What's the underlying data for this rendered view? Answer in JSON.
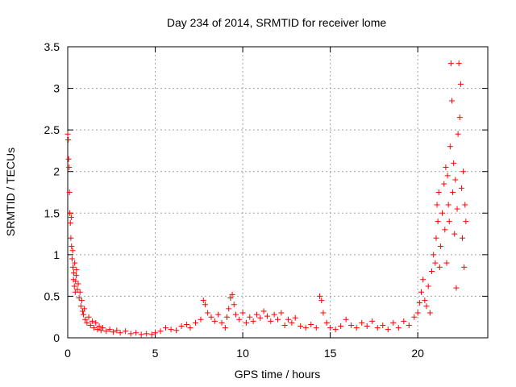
{
  "chart_data": {
    "type": "scatter",
    "title": "Day 234 of 2014, SRMTID for receiver lome",
    "xlabel": "GPS time / hours",
    "ylabel": "SRMTID / TECUs",
    "xlim": [
      0,
      24
    ],
    "ylim": [
      0,
      3.5
    ],
    "x_ticks": [
      "0",
      "5",
      "10",
      "15",
      "20"
    ],
    "y_ticks": [
      "0",
      "0.5",
      "1",
      "1.5",
      "2",
      "2.5",
      "3",
      "3.5"
    ],
    "grid": true,
    "marker": "plus",
    "color": "#ff0000",
    "series": [
      {
        "points": [
          [
            0.0,
            2.45
          ],
          [
            0.03,
            2.38
          ],
          [
            0.05,
            2.15
          ],
          [
            0.08,
            2.05
          ],
          [
            0.1,
            1.75
          ],
          [
            0.12,
            1.5
          ],
          [
            0.15,
            1.38
          ],
          [
            0.18,
            1.2
          ],
          [
            0.2,
            1.45
          ],
          [
            0.22,
            1.1
          ],
          [
            0.25,
            0.95
          ],
          [
            0.28,
            1.05
          ],
          [
            0.3,
            0.85
          ],
          [
            0.33,
            0.7
          ],
          [
            0.35,
            0.78
          ],
          [
            0.38,
            0.62
          ],
          [
            0.4,
            0.9
          ],
          [
            0.43,
            0.55
          ],
          [
            0.45,
            0.68
          ],
          [
            0.48,
            0.75
          ],
          [
            0.5,
            0.82
          ],
          [
            0.55,
            0.58
          ],
          [
            0.6,
            0.65
          ],
          [
            0.65,
            0.48
          ],
          [
            0.7,
            0.55
          ],
          [
            0.75,
            0.38
          ],
          [
            0.8,
            0.45
          ],
          [
            0.85,
            0.32
          ],
          [
            0.9,
            0.28
          ],
          [
            0.95,
            0.35
          ],
          [
            1.0,
            0.22
          ],
          [
            1.1,
            0.18
          ],
          [
            1.2,
            0.25
          ],
          [
            1.3,
            0.15
          ],
          [
            1.4,
            0.2
          ],
          [
            1.5,
            0.12
          ],
          [
            1.6,
            0.18
          ],
          [
            1.7,
            0.1
          ],
          [
            1.8,
            0.14
          ],
          [
            1.9,
            0.09
          ],
          [
            2.0,
            0.12
          ],
          [
            2.2,
            0.08
          ],
          [
            2.4,
            0.1
          ],
          [
            2.6,
            0.07
          ],
          [
            2.8,
            0.09
          ],
          [
            3.0,
            0.06
          ],
          [
            3.3,
            0.08
          ],
          [
            3.6,
            0.05
          ],
          [
            3.9,
            0.06
          ],
          [
            4.2,
            0.04
          ],
          [
            4.5,
            0.05
          ],
          [
            4.8,
            0.04
          ],
          [
            5.0,
            0.06
          ],
          [
            5.3,
            0.08
          ],
          [
            5.6,
            0.12
          ],
          [
            5.9,
            0.1
          ],
          [
            6.2,
            0.09
          ],
          [
            6.5,
            0.14
          ],
          [
            6.8,
            0.16
          ],
          [
            7.0,
            0.12
          ],
          [
            7.3,
            0.18
          ],
          [
            7.6,
            0.22
          ],
          [
            7.75,
            0.45
          ],
          [
            7.85,
            0.4
          ],
          [
            8.0,
            0.3
          ],
          [
            8.2,
            0.25
          ],
          [
            8.4,
            0.2
          ],
          [
            8.6,
            0.28
          ],
          [
            8.8,
            0.18
          ],
          [
            9.0,
            0.12
          ],
          [
            9.1,
            0.25
          ],
          [
            9.2,
            0.35
          ],
          [
            9.3,
            0.48
          ],
          [
            9.4,
            0.52
          ],
          [
            9.5,
            0.4
          ],
          [
            9.6,
            0.28
          ],
          [
            9.8,
            0.22
          ],
          [
            10.0,
            0.3
          ],
          [
            10.2,
            0.18
          ],
          [
            10.4,
            0.25
          ],
          [
            10.6,
            0.2
          ],
          [
            10.8,
            0.28
          ],
          [
            11.0,
            0.24
          ],
          [
            11.2,
            0.32
          ],
          [
            11.4,
            0.26
          ],
          [
            11.6,
            0.2
          ],
          [
            11.8,
            0.28
          ],
          [
            12.0,
            0.22
          ],
          [
            12.2,
            0.3
          ],
          [
            12.4,
            0.15
          ],
          [
            12.6,
            0.22
          ],
          [
            12.8,
            0.18
          ],
          [
            13.0,
            0.24
          ],
          [
            13.3,
            0.14
          ],
          [
            13.6,
            0.12
          ],
          [
            13.9,
            0.16
          ],
          [
            14.2,
            0.12
          ],
          [
            14.4,
            0.5
          ],
          [
            14.5,
            0.45
          ],
          [
            14.6,
            0.3
          ],
          [
            14.8,
            0.18
          ],
          [
            15.0,
            0.12
          ],
          [
            15.3,
            0.1
          ],
          [
            15.6,
            0.14
          ],
          [
            15.9,
            0.22
          ],
          [
            16.2,
            0.15
          ],
          [
            16.5,
            0.12
          ],
          [
            16.8,
            0.18
          ],
          [
            17.1,
            0.14
          ],
          [
            17.4,
            0.2
          ],
          [
            17.7,
            0.12
          ],
          [
            18.0,
            0.15
          ],
          [
            18.3,
            0.1
          ],
          [
            18.6,
            0.18
          ],
          [
            18.9,
            0.12
          ],
          [
            19.2,
            0.2
          ],
          [
            19.5,
            0.15
          ],
          [
            19.8,
            0.25
          ],
          [
            20.0,
            0.3
          ],
          [
            20.1,
            0.42
          ],
          [
            20.2,
            0.55
          ],
          [
            20.3,
            0.7
          ],
          [
            20.4,
            0.45
          ],
          [
            20.5,
            0.38
          ],
          [
            20.6,
            0.62
          ],
          [
            20.7,
            0.3
          ],
          [
            20.8,
            0.8
          ],
          [
            20.9,
            1.0
          ],
          [
            21.0,
            0.9
          ],
          [
            21.05,
            1.2
          ],
          [
            21.1,
            1.6
          ],
          [
            21.15,
            1.4
          ],
          [
            21.2,
            1.75
          ],
          [
            21.25,
            0.85
          ],
          [
            21.3,
            1.1
          ],
          [
            21.4,
            1.5
          ],
          [
            21.5,
            1.85
          ],
          [
            21.55,
            1.3
          ],
          [
            21.6,
            2.05
          ],
          [
            21.65,
            0.9
          ],
          [
            21.7,
            1.95
          ],
          [
            21.75,
            1.6
          ],
          [
            21.8,
            1.4
          ],
          [
            21.85,
            2.3
          ],
          [
            21.9,
            3.3
          ],
          [
            21.95,
            2.85
          ],
          [
            22.0,
            1.75
          ],
          [
            22.05,
            2.1
          ],
          [
            22.1,
            1.25
          ],
          [
            22.15,
            1.9
          ],
          [
            22.2,
            0.6
          ],
          [
            22.25,
            1.55
          ],
          [
            22.3,
            2.45
          ],
          [
            22.35,
            3.3
          ],
          [
            22.4,
            2.65
          ],
          [
            22.45,
            3.05
          ],
          [
            22.5,
            1.8
          ],
          [
            22.55,
            1.2
          ],
          [
            22.6,
            2.0
          ],
          [
            22.65,
            0.85
          ],
          [
            22.7,
            1.6
          ],
          [
            22.75,
            1.4
          ]
        ]
      }
    ]
  }
}
